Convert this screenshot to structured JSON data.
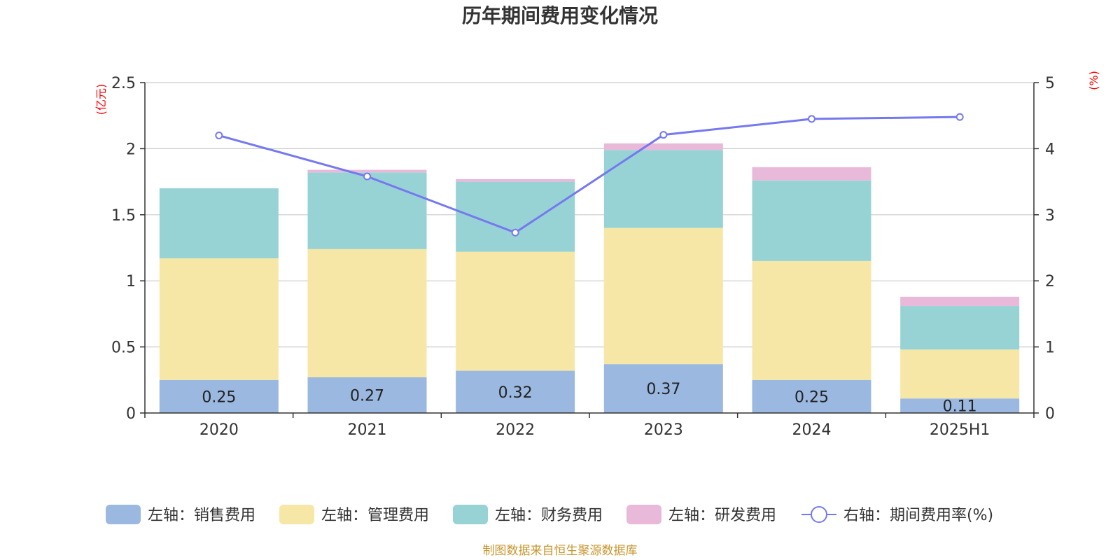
{
  "chart_data": {
    "type": "bar",
    "stacked": true,
    "title": "历年期间费用变化情况",
    "categories": [
      "2020",
      "2021",
      "2022",
      "2023",
      "2024",
      "2025H1"
    ],
    "left_axis": {
      "unit_label": "(亿元)",
      "ylim": [
        0,
        2.5
      ],
      "ticks": [
        "0",
        "0.5",
        "1",
        "1.5",
        "2",
        "2.5"
      ]
    },
    "right_axis": {
      "unit_label": "(%)",
      "ylim": [
        0,
        5
      ],
      "ticks": [
        "0",
        "1",
        "2",
        "3",
        "4",
        "5"
      ]
    },
    "series": [
      {
        "name": "左轴：销售费用",
        "type": "bar",
        "color": "#9bb8e0",
        "values": [
          0.25,
          0.27,
          0.32,
          0.37,
          0.25,
          0.11
        ]
      },
      {
        "name": "左轴：管理费用",
        "type": "bar",
        "color": "#f7e7a6",
        "values": [
          0.92,
          0.97,
          0.9,
          1.03,
          0.9,
          0.37
        ]
      },
      {
        "name": "左轴：财务费用",
        "type": "bar",
        "color": "#97d3d4",
        "values": [
          0.53,
          0.58,
          0.53,
          0.59,
          0.61,
          0.33
        ]
      },
      {
        "name": "左轴：研发费用",
        "type": "bar",
        "color": "#e8b9d9",
        "values": [
          0.0,
          0.02,
          0.02,
          0.05,
          0.1,
          0.07
        ]
      },
      {
        "name": "右轴：期间费用率(%)",
        "type": "line",
        "axis": "right",
        "color": "#7578f0",
        "values": [
          4.2,
          3.58,
          2.73,
          4.21,
          4.45,
          4.48
        ]
      }
    ],
    "data_labels": [
      "0.25",
      "0.27",
      "0.32",
      "0.37",
      "0.25",
      "0.11"
    ],
    "grid": true,
    "legend_position": "bottom"
  },
  "source_note": "制图数据来自恒生聚源数据库"
}
